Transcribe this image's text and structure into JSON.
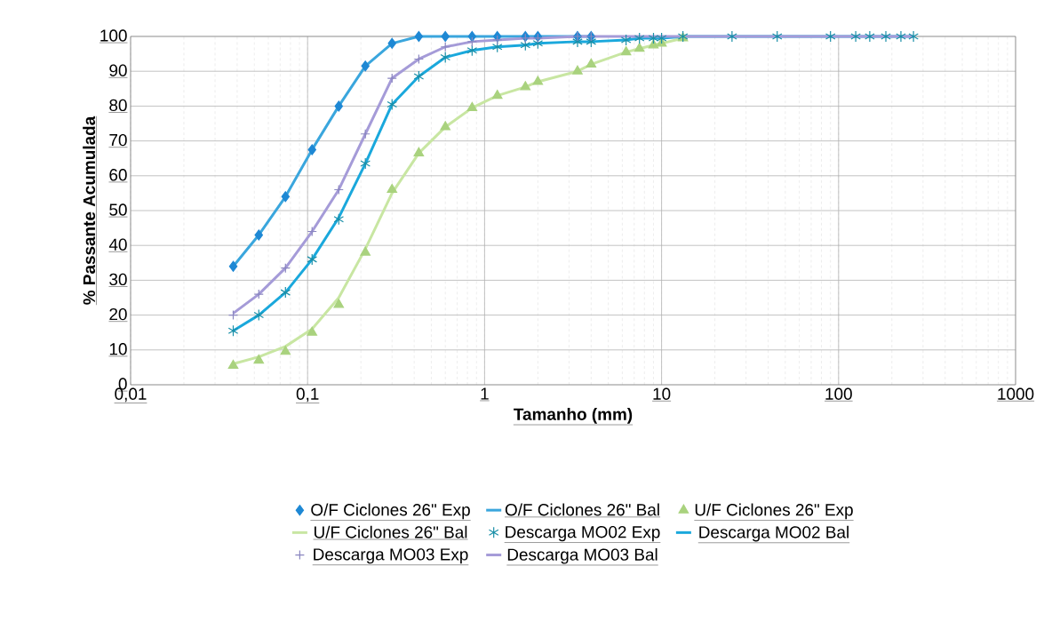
{
  "chart_data": {
    "type": "line",
    "xlabel": "Tamanho (mm)",
    "ylabel": "% Passante Acumulada",
    "log": "x",
    "grid": true,
    "legend": "bottom",
    "xlim": [
      0.01,
      1000
    ],
    "ylim": [
      0,
      100
    ],
    "xticks": [
      {
        "value": 0.01,
        "label": "0,01"
      },
      {
        "value": 0.1,
        "label": "0,1"
      },
      1,
      10,
      100,
      1000
    ],
    "yticks": [
      0,
      10,
      20,
      30,
      40,
      50,
      60,
      70,
      80,
      90,
      100
    ],
    "series": [
      {
        "name": "O/F Ciclones 26\" Exp",
        "type": "scatter",
        "marker": "diamond",
        "color": "#1e88d4",
        "x": [
          0.038,
          0.053,
          0.075,
          0.106,
          0.15,
          0.212,
          0.3,
          0.425,
          0.6,
          0.85,
          1.18,
          1.7,
          2,
          3.35,
          4
        ],
        "values": [
          34,
          43,
          54,
          67.5,
          80,
          91.5,
          98,
          100,
          100,
          100,
          100,
          100,
          100,
          100,
          100
        ]
      },
      {
        "name": "O/F Ciclones 26\" Bal",
        "marker": "none",
        "color": "#3aa6dd",
        "x": [
          0.038,
          0.053,
          0.075,
          0.106,
          0.15,
          0.212,
          0.3,
          0.425,
          0.6,
          0.85,
          1.18,
          1.7,
          2,
          3.35,
          4
        ],
        "values": [
          34,
          43,
          54,
          67.5,
          80,
          91.5,
          98,
          100,
          100,
          100,
          100,
          100,
          100,
          100,
          100
        ]
      },
      {
        "name": "U/F Ciclones 26\" Exp",
        "type": "scatter",
        "marker": "triangle",
        "color": "#a9d27e",
        "x": [
          0.038,
          0.053,
          0.075,
          0.106,
          0.15,
          0.212,
          0.3,
          0.425,
          0.6,
          0.85,
          1.18,
          1.7,
          2,
          3.35,
          4,
          6.3,
          7.5,
          9,
          10,
          13.2
        ],
        "values": [
          5.5,
          7,
          9.5,
          15,
          23,
          38,
          56,
          66.5,
          74,
          79.5,
          83,
          85.5,
          87,
          90,
          92,
          95.5,
          96.5,
          97.5,
          98,
          99.5
        ]
      },
      {
        "name": "U/F Ciclones 26\" Bal",
        "marker": "none",
        "color": "#c8e6a2",
        "x": [
          0.038,
          0.053,
          0.075,
          0.106,
          0.15,
          0.212,
          0.3,
          0.425,
          0.6,
          0.85,
          1.18,
          1.7,
          2,
          3.35,
          4,
          6.3,
          7.5,
          9,
          10,
          13.2
        ],
        "values": [
          6,
          8,
          11,
          16,
          25,
          39,
          55,
          66.5,
          74,
          79.5,
          83,
          85.5,
          87,
          90,
          92,
          95.5,
          96.5,
          97.5,
          98,
          99.5
        ]
      },
      {
        "name": "Descarga MO02 Exp",
        "type": "scatter",
        "color": "#1a8fa8",
        "x": [
          0.038,
          0.053,
          0.075,
          0.106,
          0.15,
          0.212,
          0.3,
          0.425,
          0.6,
          0.85,
          1.18,
          1.7,
          2,
          3.35,
          4,
          6.3,
          7.5,
          9,
          10,
          13.2,
          25,
          45,
          90,
          125,
          150,
          185,
          225,
          265
        ],
        "values": [
          15.5,
          20,
          26.5,
          36,
          47.5,
          63.5,
          80.5,
          88.5,
          94,
          96,
          97,
          97.5,
          98,
          98.5,
          98.5,
          99,
          99.5,
          99.5,
          99.5,
          100,
          100,
          100,
          100,
          100,
          100,
          100,
          100,
          100
        ]
      },
      {
        "name": "Descarga MO02 Bal",
        "marker": "none",
        "color": "#1aa8dc",
        "x": [
          0.038,
          0.053,
          0.075,
          0.106,
          0.15,
          0.212,
          0.3,
          0.425,
          0.6,
          0.85,
          1.18,
          1.7,
          2,
          3.35,
          4,
          6.3,
          7.5,
          9,
          10,
          13.2,
          25,
          45,
          90,
          125,
          150,
          185,
          225,
          265
        ],
        "values": [
          15.5,
          20,
          26.5,
          36,
          48,
          63.5,
          80.5,
          88.5,
          94,
          96,
          97,
          97.5,
          98,
          98.5,
          98.5,
          99,
          99.5,
          99.5,
          99.5,
          100,
          100,
          100,
          100,
          100,
          100,
          100,
          100,
          100
        ]
      },
      {
        "name": "Descarga MO03 Exp",
        "type": "scatter",
        "marker": "cross",
        "color": "#8a86c0",
        "x": [
          0.038,
          0.053,
          0.075,
          0.106,
          0.15,
          0.212,
          0.3,
          0.425,
          0.6,
          0.85,
          1.18,
          1.7,
          2,
          3.35,
          4
        ],
        "values": [
          20,
          26,
          33.5,
          44,
          56,
          72,
          88,
          93.5,
          97,
          98.5,
          99,
          99.5,
          99.5,
          100,
          100
        ]
      },
      {
        "name": "Descarga MO03 Bal",
        "marker": "none",
        "color": "#a59bd8",
        "x": [
          0.038,
          0.053,
          0.075,
          0.106,
          0.15,
          0.212,
          0.3,
          0.425,
          0.6,
          0.85,
          1.18,
          1.7,
          2,
          3.35,
          4,
          10,
          25,
          90,
          265
        ],
        "values": [
          20.5,
          26,
          33.5,
          44,
          56,
          72,
          88,
          93.5,
          97,
          98.5,
          99,
          99.5,
          99.5,
          100,
          100,
          100,
          100,
          100,
          100
        ]
      }
    ]
  }
}
